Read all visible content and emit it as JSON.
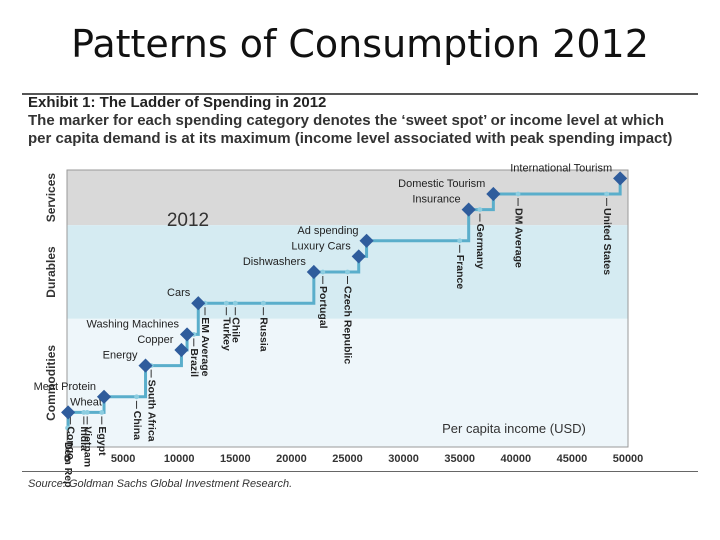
{
  "slide_title": "Patterns of Consumption 2012",
  "exhibit_title": "Exhibit 1: The Ladder of Spending in 2012",
  "subtitle": "The marker for each spending category denotes the ‘sweet spot’ or income level at which per capita demand is at its maximum (income level associated with peak spending impact)",
  "source": "Source: Goldman Sachs Global Investment Research.",
  "colors": {
    "services_band": "#d9d9d9",
    "durables_band": "#d5ebf2",
    "commodities_band": "#eef6fa",
    "line": "#5aaecb",
    "marker": "#2f5c9c",
    "text": "#222222"
  },
  "chart_data": {
    "type": "line",
    "title": "2012",
    "xlabel": "Per capita income (USD)",
    "xlim": [
      0,
      50000
    ],
    "x_ticks": [
      0,
      5000,
      10000,
      15000,
      20000,
      25000,
      30000,
      35000,
      40000,
      45000,
      50000
    ],
    "x_tick_labels": [
      "0",
      "5000",
      "10000",
      "15000",
      "20000",
      "25000",
      "30000",
      "35000",
      "40000",
      "45000",
      "50000"
    ],
    "bands": [
      {
        "name": "Services",
        "from_step": 13,
        "to_step": 17
      },
      {
        "name": "Durables",
        "from_step": 7,
        "to_step": 13
      },
      {
        "name": "Commodities",
        "from_step": 0,
        "to_step": 7
      }
    ],
    "categories": [
      {
        "label": "Wheat",
        "income": 100,
        "step": 1,
        "label_side": "right"
      },
      {
        "label": "Meat Protein",
        "income": 3300,
        "step": 2,
        "label_side": "left"
      },
      {
        "label": "Energy",
        "income": 7000,
        "step": 4,
        "label_side": "left"
      },
      {
        "label": "Copper",
        "income": 10200,
        "step": 5,
        "label_side": "left"
      },
      {
        "label": "Washing Machines",
        "income": 10700,
        "step": 6,
        "label_side": "left"
      },
      {
        "label": "Cars",
        "income": 11700,
        "step": 8,
        "label_side": "left"
      },
      {
        "label": "Dishwashers",
        "income": 22000,
        "step": 10,
        "label_side": "left"
      },
      {
        "label": "Luxury Cars",
        "income": 26000,
        "step": 11,
        "label_side": "left"
      },
      {
        "label": "Ad spending",
        "income": 26700,
        "step": 12,
        "label_side": "left"
      },
      {
        "label": "Insurance",
        "income": 35800,
        "step": 14,
        "label_side": "left"
      },
      {
        "label": "Domestic Tourism",
        "income": 38000,
        "step": 15,
        "label_side": "left"
      },
      {
        "label": "International Tourism",
        "income": 49300,
        "step": 16,
        "label_side": "left"
      }
    ],
    "countries": [
      {
        "label": "Dem Rep",
        "income": 50
      },
      {
        "label": "Congo",
        "income": 300
      },
      {
        "label": "India",
        "income": 1500
      },
      {
        "label": "Vietnam",
        "income": 1800
      },
      {
        "label": "Egypt",
        "income": 3100
      },
      {
        "label": "China",
        "income": 6200
      },
      {
        "label": "South Africa",
        "income": 7500
      },
      {
        "label": "Brazil",
        "income": 11300
      },
      {
        "label": "EM Average",
        "income": 12300
      },
      {
        "label": "Turkey",
        "income": 14200
      },
      {
        "label": "Chile",
        "income": 15000
      },
      {
        "label": "Russia",
        "income": 17500
      },
      {
        "label": "Portugal",
        "income": 22800
      },
      {
        "label": "Czech Republic",
        "income": 25000
      },
      {
        "label": "France",
        "income": 35000
      },
      {
        "label": "Germany",
        "income": 36800
      },
      {
        "label": "DM Average",
        "income": 40200
      },
      {
        "label": "United States",
        "income": 48100
      }
    ]
  }
}
